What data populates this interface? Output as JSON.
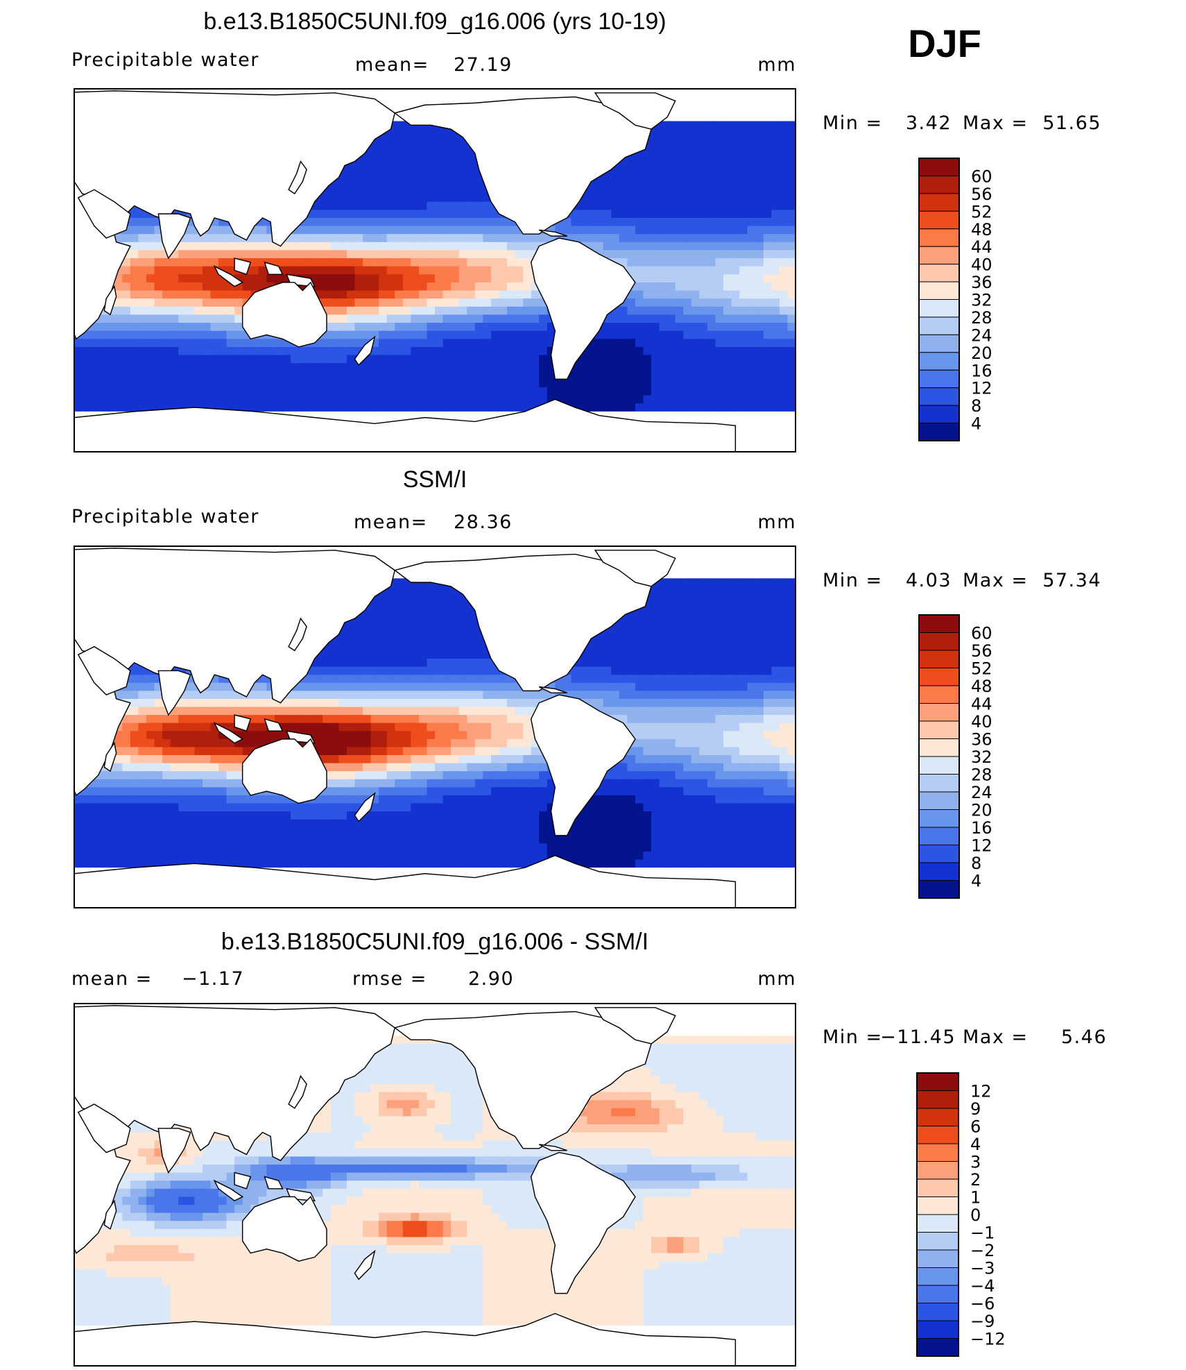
{
  "season_label": "DJF",
  "chart_data": [
    {
      "type": "heatmap",
      "title": "b.e13.B1850C5UNI.f09_g16.006 (yrs 10-19)",
      "left_label": "Precipitable water",
      "stat_label": "mean=",
      "stat_value": "27.19",
      "units": "mm",
      "min_text": "Min =",
      "min_value": "3.42",
      "max_text": "Max =",
      "max_value": "51.65",
      "levels": [
        "60",
        "56",
        "52",
        "48",
        "44",
        "40",
        "36",
        "32",
        "28",
        "24",
        "20",
        "16",
        "12",
        "8",
        "4"
      ],
      "colors": [
        "#8b0d0d",
        "#b01e0e",
        "#d2330f",
        "#ef4d1c",
        "#fb7a49",
        "#fca07c",
        "#fdc8ac",
        "#fde8d8",
        "#dbe8f8",
        "#b5cdf4",
        "#8fb2ee",
        "#6a95ec",
        "#4a76ea",
        "#2c55e3",
        "#1432cf",
        "#04148f"
      ],
      "field": "model"
    },
    {
      "type": "heatmap",
      "title": "SSM/I",
      "left_label": "Precipitable water",
      "stat_label": "mean=",
      "stat_value": "28.36",
      "units": "mm",
      "min_text": "Min =",
      "min_value": "4.03",
      "max_text": "Max =",
      "max_value": "57.34",
      "levels": [
        "60",
        "56",
        "52",
        "48",
        "44",
        "40",
        "36",
        "32",
        "28",
        "24",
        "20",
        "16",
        "12",
        "8",
        "4"
      ],
      "colors": [
        "#8b0d0d",
        "#b01e0e",
        "#d2330f",
        "#ef4d1c",
        "#fb7a49",
        "#fca07c",
        "#fdc8ac",
        "#fde8d8",
        "#dbe8f8",
        "#b5cdf4",
        "#8fb2ee",
        "#6a95ec",
        "#4a76ea",
        "#2c55e3",
        "#1432cf",
        "#04148f"
      ],
      "field": "obs"
    },
    {
      "type": "heatmap",
      "title": "b.e13.B1850C5UNI.f09_g16.006 - SSM/I",
      "left_label": "mean =",
      "left_value": "−1.17",
      "stat_label": "rmse =",
      "stat_value": "2.90",
      "units": "mm",
      "min_text": "Min =",
      "min_value": "−11.45",
      "max_text": "Max =",
      "max_value": "5.46",
      "levels": [
        "12",
        "9",
        "6",
        "4",
        "3",
        "2",
        "1",
        "0",
        "−1",
        "−2",
        "−3",
        "−4",
        "−6",
        "−9",
        "−12"
      ],
      "colors": [
        "#8b0d0d",
        "#b01e0e",
        "#d2330f",
        "#ef4d1c",
        "#fb7a49",
        "#fca07c",
        "#fdc8ac",
        "#fde8d8",
        "#dbe8f8",
        "#b5cdf4",
        "#8fb2ee",
        "#6a95ec",
        "#4a76ea",
        "#2c55e3",
        "#1432cf",
        "#04148f"
      ],
      "field": "diff"
    }
  ]
}
